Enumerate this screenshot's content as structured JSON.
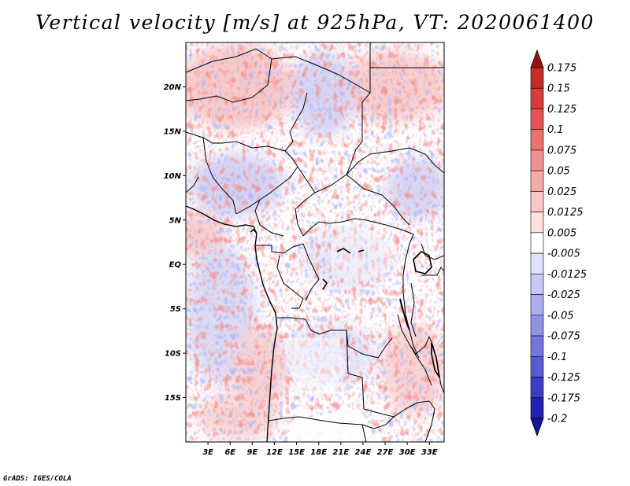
{
  "title": "Vertical velocity [m/s] at 925hPa, VT: 2020061400",
  "credit": "GrADS: IGES/COLA",
  "map": {
    "lon_range": [
      0,
      35
    ],
    "lat_range": [
      -20,
      25
    ],
    "lat_ticks": [
      {
        "value": 20,
        "label": "20N"
      },
      {
        "value": 15,
        "label": "15N"
      },
      {
        "value": 10,
        "label": "10N"
      },
      {
        "value": 5,
        "label": "5N"
      },
      {
        "value": 0,
        "label": "EQ"
      },
      {
        "value": -5,
        "label": "5S"
      },
      {
        "value": -10,
        "label": "10S"
      },
      {
        "value": -15,
        "label": "15S"
      }
    ],
    "lon_ticks": [
      {
        "value": 3,
        "label": "3E"
      },
      {
        "value": 6,
        "label": "6E"
      },
      {
        "value": 9,
        "label": "9E"
      },
      {
        "value": 12,
        "label": "12E"
      },
      {
        "value": 15,
        "label": "15E"
      },
      {
        "value": 18,
        "label": "18E"
      },
      {
        "value": 21,
        "label": "21E"
      },
      {
        "value": 24,
        "label": "24E"
      },
      {
        "value": 27,
        "label": "27E"
      },
      {
        "value": 30,
        "label": "30E"
      },
      {
        "value": 33,
        "label": "33E"
      }
    ]
  },
  "colorbar": {
    "levels": [
      {
        "label": "0.175",
        "color": "#b01a1a"
      },
      {
        "label": "0.15",
        "color": "#c42b2b"
      },
      {
        "label": "0.125",
        "color": "#d63d3d"
      },
      {
        "label": "0.1",
        "color": "#e25656"
      },
      {
        "label": "0.075",
        "color": "#ec7272"
      },
      {
        "label": "0.05",
        "color": "#f28f8f"
      },
      {
        "label": "0.025",
        "color": "#f6abab"
      },
      {
        "label": "0.0125",
        "color": "#fac6c6"
      },
      {
        "label": "0.005",
        "color": "#fde1e1"
      },
      {
        "label": "-0.005",
        "color": "#ffffff"
      },
      {
        "label": "-0.0125",
        "color": "#e1e1fb"
      },
      {
        "label": "-0.025",
        "color": "#c8c8f6"
      },
      {
        "label": "-0.05",
        "color": "#adadef"
      },
      {
        "label": "-0.075",
        "color": "#9191e8"
      },
      {
        "label": "-0.1",
        "color": "#7676df"
      },
      {
        "label": "-0.125",
        "color": "#5a5ad4"
      },
      {
        "label": "-0.175",
        "color": "#3d3dc4"
      },
      {
        "label": "-0.2",
        "color": "#2323b0"
      }
    ],
    "top_arrow_color": "#9a1010",
    "bottom_arrow_color": "#14149a"
  }
}
